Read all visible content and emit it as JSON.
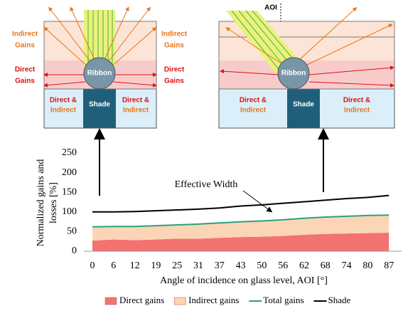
{
  "diagrams": {
    "indirect_gains": [
      "Indirect",
      "Gains"
    ],
    "direct_gains": [
      "Direct",
      "Gains"
    ],
    "ribbon": "Ribbon",
    "shade": "Shade",
    "direct_and": "Direct &",
    "indirect": "Indirect",
    "aoi": "AOI"
  },
  "chart_data": {
    "type": "stacked-area",
    "ylabel": [
      "Normalized gains and",
      "losses [%]"
    ],
    "xlabel": "Angle of incidence on glass level, AOI [°]",
    "annotation": "Effective Width",
    "categories": [
      "0",
      "6",
      "12",
      "19",
      "25",
      "31",
      "37",
      "43",
      "50",
      "56",
      "62",
      "68",
      "74",
      "80",
      "87"
    ],
    "ylim": [
      0,
      250
    ],
    "yticks": [
      0,
      50,
      100,
      150,
      200,
      250
    ],
    "series": [
      {
        "name": "Direct gains",
        "color": "#f47272",
        "kind": "area",
        "values": [
          27,
          30,
          28,
          30,
          32,
          32,
          34,
          36,
          37,
          39,
          42,
          44,
          45,
          46,
          47
        ]
      },
      {
        "name": "Indirect gains",
        "color": "#fbd5b5",
        "kind": "area",
        "values": [
          35,
          33,
          35,
          35,
          35,
          37,
          38,
          39,
          40,
          41,
          42,
          43,
          44,
          45,
          45
        ]
      },
      {
        "name": "Total gains",
        "color": "#2aa37a",
        "kind": "line",
        "values": [
          62,
          63,
          63,
          65,
          67,
          69,
          72,
          75,
          77,
          80,
          84,
          87,
          89,
          91,
          92
        ]
      },
      {
        "name": "Shade",
        "color": "#000000",
        "kind": "line",
        "values": [
          100,
          100,
          101,
          103,
          105,
          107,
          110,
          115,
          118,
          122,
          126,
          130,
          134,
          137,
          142
        ]
      }
    ]
  }
}
